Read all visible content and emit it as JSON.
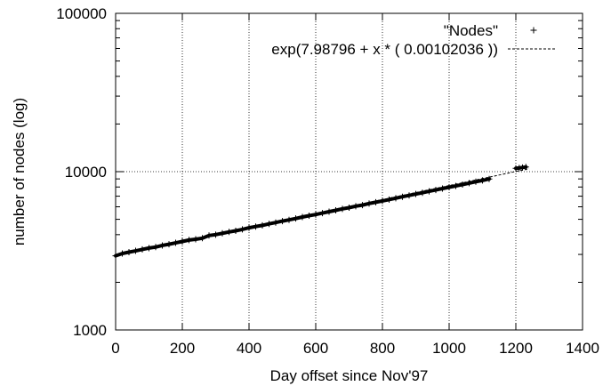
{
  "chart_data": {
    "type": "scatter",
    "title": "",
    "xlabel": "Day offset since Nov'97",
    "ylabel": "number of nodes (log)",
    "xlim": [
      0,
      1400
    ],
    "ylim": [
      1000,
      100000
    ],
    "y_scale": "log",
    "grid": true,
    "legend_position": "top-right",
    "x_ticks": [
      0,
      200,
      400,
      600,
      800,
      1000,
      1200,
      1400
    ],
    "x_tick_labels": [
      "0",
      "200",
      "400",
      "600",
      "800",
      "1000",
      "1200",
      "1400"
    ],
    "y_ticks": [
      1000,
      10000,
      100000
    ],
    "y_tick_labels": [
      "1000",
      "10000",
      "100000"
    ],
    "series": [
      {
        "name": "\"Nodes\"",
        "kind": "points",
        "marker": "plus",
        "x": [
          0,
          20,
          40,
          60,
          80,
          100,
          120,
          140,
          160,
          180,
          200,
          220,
          240,
          260,
          280,
          300,
          320,
          340,
          360,
          380,
          400,
          420,
          440,
          460,
          480,
          500,
          520,
          540,
          560,
          580,
          600,
          620,
          640,
          660,
          680,
          700,
          720,
          740,
          760,
          780,
          800,
          820,
          840,
          860,
          880,
          900,
          920,
          940,
          960,
          980,
          1000,
          1020,
          1040,
          1060,
          1080,
          1100,
          1120,
          1200,
          1210,
          1220,
          1230
        ],
        "y": [
          2940,
          3040,
          3100,
          3160,
          3230,
          3290,
          3340,
          3420,
          3480,
          3550,
          3620,
          3700,
          3740,
          3800,
          3950,
          4000,
          4080,
          4160,
          4230,
          4320,
          4420,
          4500,
          4580,
          4680,
          4770,
          4870,
          4960,
          5060,
          5170,
          5270,
          5360,
          5470,
          5590,
          5700,
          5820,
          5920,
          6050,
          6150,
          6290,
          6410,
          6530,
          6660,
          6800,
          6940,
          7080,
          7220,
          7360,
          7510,
          7660,
          7820,
          7970,
          8120,
          8290,
          8460,
          8640,
          8800,
          8990,
          10500,
          10540,
          10620,
          10700
        ]
      },
      {
        "name": "exp(7.98796  + x * (  0.00102036 ))",
        "kind": "line",
        "style": "dashed",
        "intercept": 7.98796,
        "slope": 0.00102036,
        "x_range": [
          0,
          1240
        ]
      }
    ]
  }
}
